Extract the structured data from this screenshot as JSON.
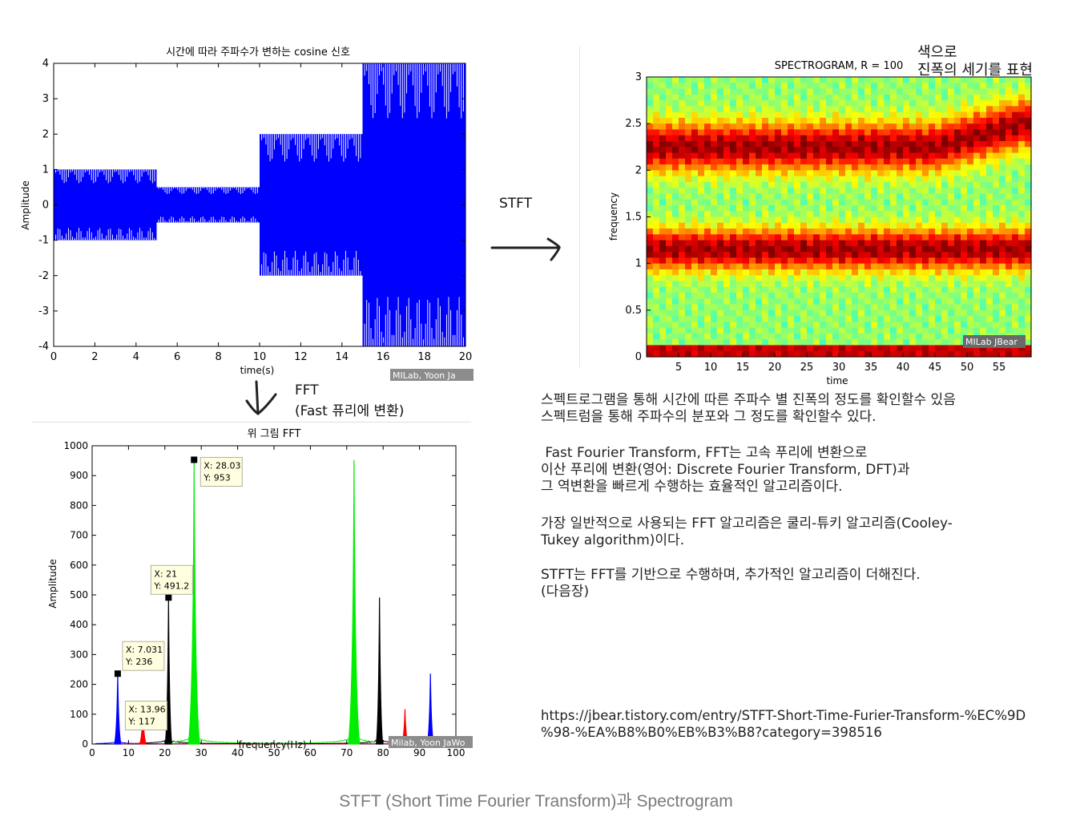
{
  "chart_data": [
    {
      "type": "line",
      "title": "시간에 따라 주파수가 변하는 cosine 신호",
      "xlabel": "time(s)",
      "ylabel": "Amplitude",
      "xlim": [
        0,
        20
      ],
      "ylim": [
        -4,
        4
      ],
      "xticks": [
        0,
        2,
        4,
        6,
        8,
        10,
        12,
        14,
        16,
        18,
        20
      ],
      "yticks": [
        4,
        3,
        2,
        1,
        0,
        -1,
        -2,
        -3,
        -4
      ],
      "segments": [
        {
          "t_start": 0,
          "t_end": 5,
          "amplitude": 1
        },
        {
          "t_start": 5,
          "t_end": 10,
          "amplitude": 0.5
        },
        {
          "t_start": 10,
          "t_end": 15,
          "amplitude": 2
        },
        {
          "t_start": 15,
          "t_end": 20,
          "amplitude": 4
        }
      ],
      "color": "#0000ff",
      "watermark": "MILab, Yoon Ja"
    },
    {
      "type": "heatmap",
      "title": "SPECTROGRAM, R = 100",
      "xlabel": "time",
      "ylabel": "frequency",
      "xlim": [
        0,
        60
      ],
      "ylim": [
        0,
        3
      ],
      "xticks": [
        5,
        10,
        15,
        20,
        25,
        30,
        35,
        40,
        45,
        50,
        55
      ],
      "yticks": [
        0,
        0.5,
        1,
        1.5,
        2,
        2.5,
        3
      ],
      "high_power_bands": [
        {
          "frequency": 1.15
        },
        {
          "frequency": 2.25
        }
      ],
      "colormap": "jet",
      "watermark": "MILab JBear"
    },
    {
      "type": "line",
      "title": "위 그림 FFT",
      "xlabel": "frequency(Hz)",
      "ylabel": "Amplitude",
      "xlim": [
        0,
        100
      ],
      "ylim": [
        0,
        1000
      ],
      "xticks": [
        0,
        10,
        20,
        30,
        40,
        50,
        60,
        70,
        80,
        90,
        100
      ],
      "yticks": [
        0,
        100,
        200,
        300,
        400,
        500,
        600,
        700,
        800,
        900,
        1000
      ],
      "series": [
        {
          "name": "blue",
          "color": "#0000ff",
          "peaks": [
            {
              "x": 7.031,
              "y": 236
            },
            {
              "x": 93,
              "y": 236
            }
          ]
        },
        {
          "name": "red",
          "color": "#ff0000",
          "peaks": [
            {
              "x": 13.96,
              "y": 117
            },
            {
              "x": 86,
              "y": 117
            }
          ]
        },
        {
          "name": "black",
          "color": "#000000",
          "peaks": [
            {
              "x": 21,
              "y": 491.2
            },
            {
              "x": 79,
              "y": 491.2
            }
          ]
        },
        {
          "name": "green",
          "color": "#00ee00",
          "peaks": [
            {
              "x": 28.03,
              "y": 953
            },
            {
              "x": 72,
              "y": 953
            }
          ]
        }
      ],
      "datatips": [
        {
          "x_label": "X: 28.03",
          "y_label": "Y: 953",
          "x": 28.03,
          "y": 953
        },
        {
          "x_label": "X: 21",
          "y_label": "Y: 491.2",
          "x": 21,
          "y": 491.2
        },
        {
          "x_label": "X: 7.031",
          "y_label": "Y: 236",
          "x": 7.031,
          "y": 236
        },
        {
          "x_label": "X: 13.96",
          "y_label": "Y: 117",
          "x": 13.96,
          "y": 117
        }
      ],
      "watermark": "Milab, Yoon JaWo"
    }
  ],
  "annotations": {
    "stft_label": "STFT",
    "fft_label": "FFT",
    "fft_sub": "(Fast 퓨리에 변환)",
    "spectrogram_note_line1": "색으로",
    "spectrogram_note_line2": "진폭의 세기를 표현"
  },
  "notes": {
    "p1": "스펙트로그램을 통해 시간에 따른 주파수 별 진폭의 정도를 확인할수 있음\n스펙트럼을 통해 주파수의 분포와 그 정도를 확인할수 있다.",
    "p2": " Fast Fourier Transform, FFT는 고속 푸리에 변환으로\n이산 푸리에 변환(영어: Discrete Fourier Transform, DFT)과\n그 역변환을 빠르게 수행하는 효율적인 알고리즘이다.",
    "p3": "가장 일반적으로 사용되는 FFT 알고리즘은 쿨리-튜키 알고리즘(Cooley-\nTukey algorithm)이다.",
    "p4": "STFT는 FFT를 기반으로 수행하며, 추가적인 알고리즘이 더해진다.\n(다음장)",
    "url": "https://jbear.tistory.com/entry/STFT-Short-Time-Furier-Transform-%EC%9D\n%98-%EA%B8%B0%EB%B3%B8?category=398516"
  },
  "caption": "STFT (Short Time Fourier Transform)과 Spectrogram"
}
